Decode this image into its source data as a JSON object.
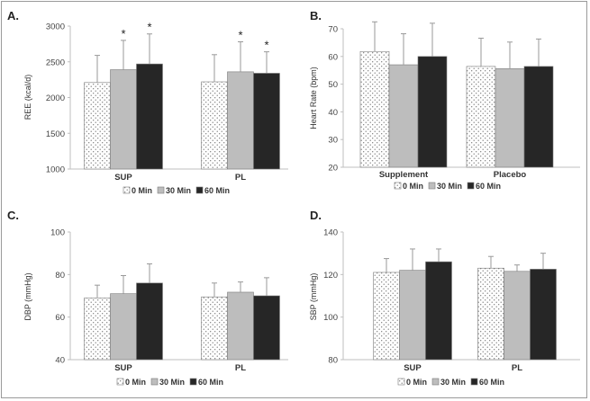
{
  "colors": {
    "0 Min": "dots",
    "30 Min": "#bdbdbd",
    "60 Min": "#262626",
    "axis": "#bfbfbf",
    "error_bar": "#999999"
  },
  "chart_data": [
    {
      "panel": "A.",
      "type": "bar",
      "ylabel": "REE (kcal/d)",
      "ylim": [
        1000,
        3000
      ],
      "yticks": [
        1000,
        1500,
        2000,
        2500,
        3000
      ],
      "categories": [
        "SUP",
        "PL"
      ],
      "series": [
        {
          "name": "0 Min",
          "values": [
            2210,
            2220
          ],
          "errors": [
            380,
            380
          ],
          "stars": [
            false,
            false
          ]
        },
        {
          "name": "30 Min",
          "values": [
            2390,
            2360
          ],
          "errors": [
            410,
            420
          ],
          "stars": [
            true,
            true
          ]
        },
        {
          "name": "60 Min",
          "values": [
            2470,
            2340
          ],
          "errors": [
            420,
            300
          ],
          "stars": [
            true,
            true
          ]
        }
      ],
      "legend": [
        "0 Min",
        "30 Min",
        "60 Min"
      ],
      "star_label": "*"
    },
    {
      "panel": "B.",
      "type": "bar",
      "ylabel": "Heart Rate (bpm)",
      "ylim": [
        20,
        70
      ],
      "yticks": [
        20,
        30,
        40,
        50,
        60,
        70
      ],
      "categories": [
        "Supplement",
        "Placebo"
      ],
      "series": [
        {
          "name": "0 Min",
          "values": [
            61.8,
            56.4
          ],
          "errors": [
            10.7,
            10.2
          ],
          "stars": [
            false,
            false
          ]
        },
        {
          "name": "30 Min",
          "values": [
            57.0,
            55.6
          ],
          "errors": [
            11.2,
            9.6
          ],
          "stars": [
            false,
            false
          ]
        },
        {
          "name": "60 Min",
          "values": [
            60.0,
            56.4
          ],
          "errors": [
            12.0,
            9.9
          ],
          "stars": [
            false,
            false
          ]
        }
      ],
      "legend": [
        "0 Min",
        "30 Min",
        "60 Min"
      ]
    },
    {
      "panel": "C.",
      "type": "bar",
      "ylabel": "DBP (mmHg)",
      "ylim": [
        40,
        100
      ],
      "yticks": [
        40,
        60,
        80,
        100
      ],
      "categories": [
        "SUP",
        "PL"
      ],
      "series": [
        {
          "name": "0 Min",
          "values": [
            69,
            69.5
          ],
          "errors": [
            6,
            6.5
          ],
          "stars": [
            false,
            false
          ]
        },
        {
          "name": "30 Min",
          "values": [
            71,
            71.7
          ],
          "errors": [
            8.5,
            4.8
          ],
          "stars": [
            false,
            false
          ]
        },
        {
          "name": "60 Min",
          "values": [
            76,
            70
          ],
          "errors": [
            9,
            8.5
          ],
          "stars": [
            false,
            false
          ]
        }
      ],
      "legend": [
        "0 Min",
        "30 Min",
        "60 Min"
      ]
    },
    {
      "panel": "D.",
      "type": "bar",
      "ylabel": "SBP (mmHg)",
      "ylim": [
        80,
        140
      ],
      "yticks": [
        80,
        100,
        120,
        140
      ],
      "categories": [
        "SUP",
        "PL"
      ],
      "series": [
        {
          "name": "0 Min",
          "values": [
            121,
            123
          ],
          "errors": [
            6.5,
            5.5
          ],
          "stars": [
            false,
            false
          ]
        },
        {
          "name": "30 Min",
          "values": [
            122,
            121.5
          ],
          "errors": [
            10,
            3
          ],
          "stars": [
            false,
            false
          ]
        },
        {
          "name": "60 Min",
          "values": [
            126,
            122.5
          ],
          "errors": [
            6,
            7.5
          ],
          "stars": [
            false,
            false
          ]
        }
      ],
      "legend": [
        "0 Min",
        "30 Min",
        "60 Min"
      ]
    }
  ]
}
